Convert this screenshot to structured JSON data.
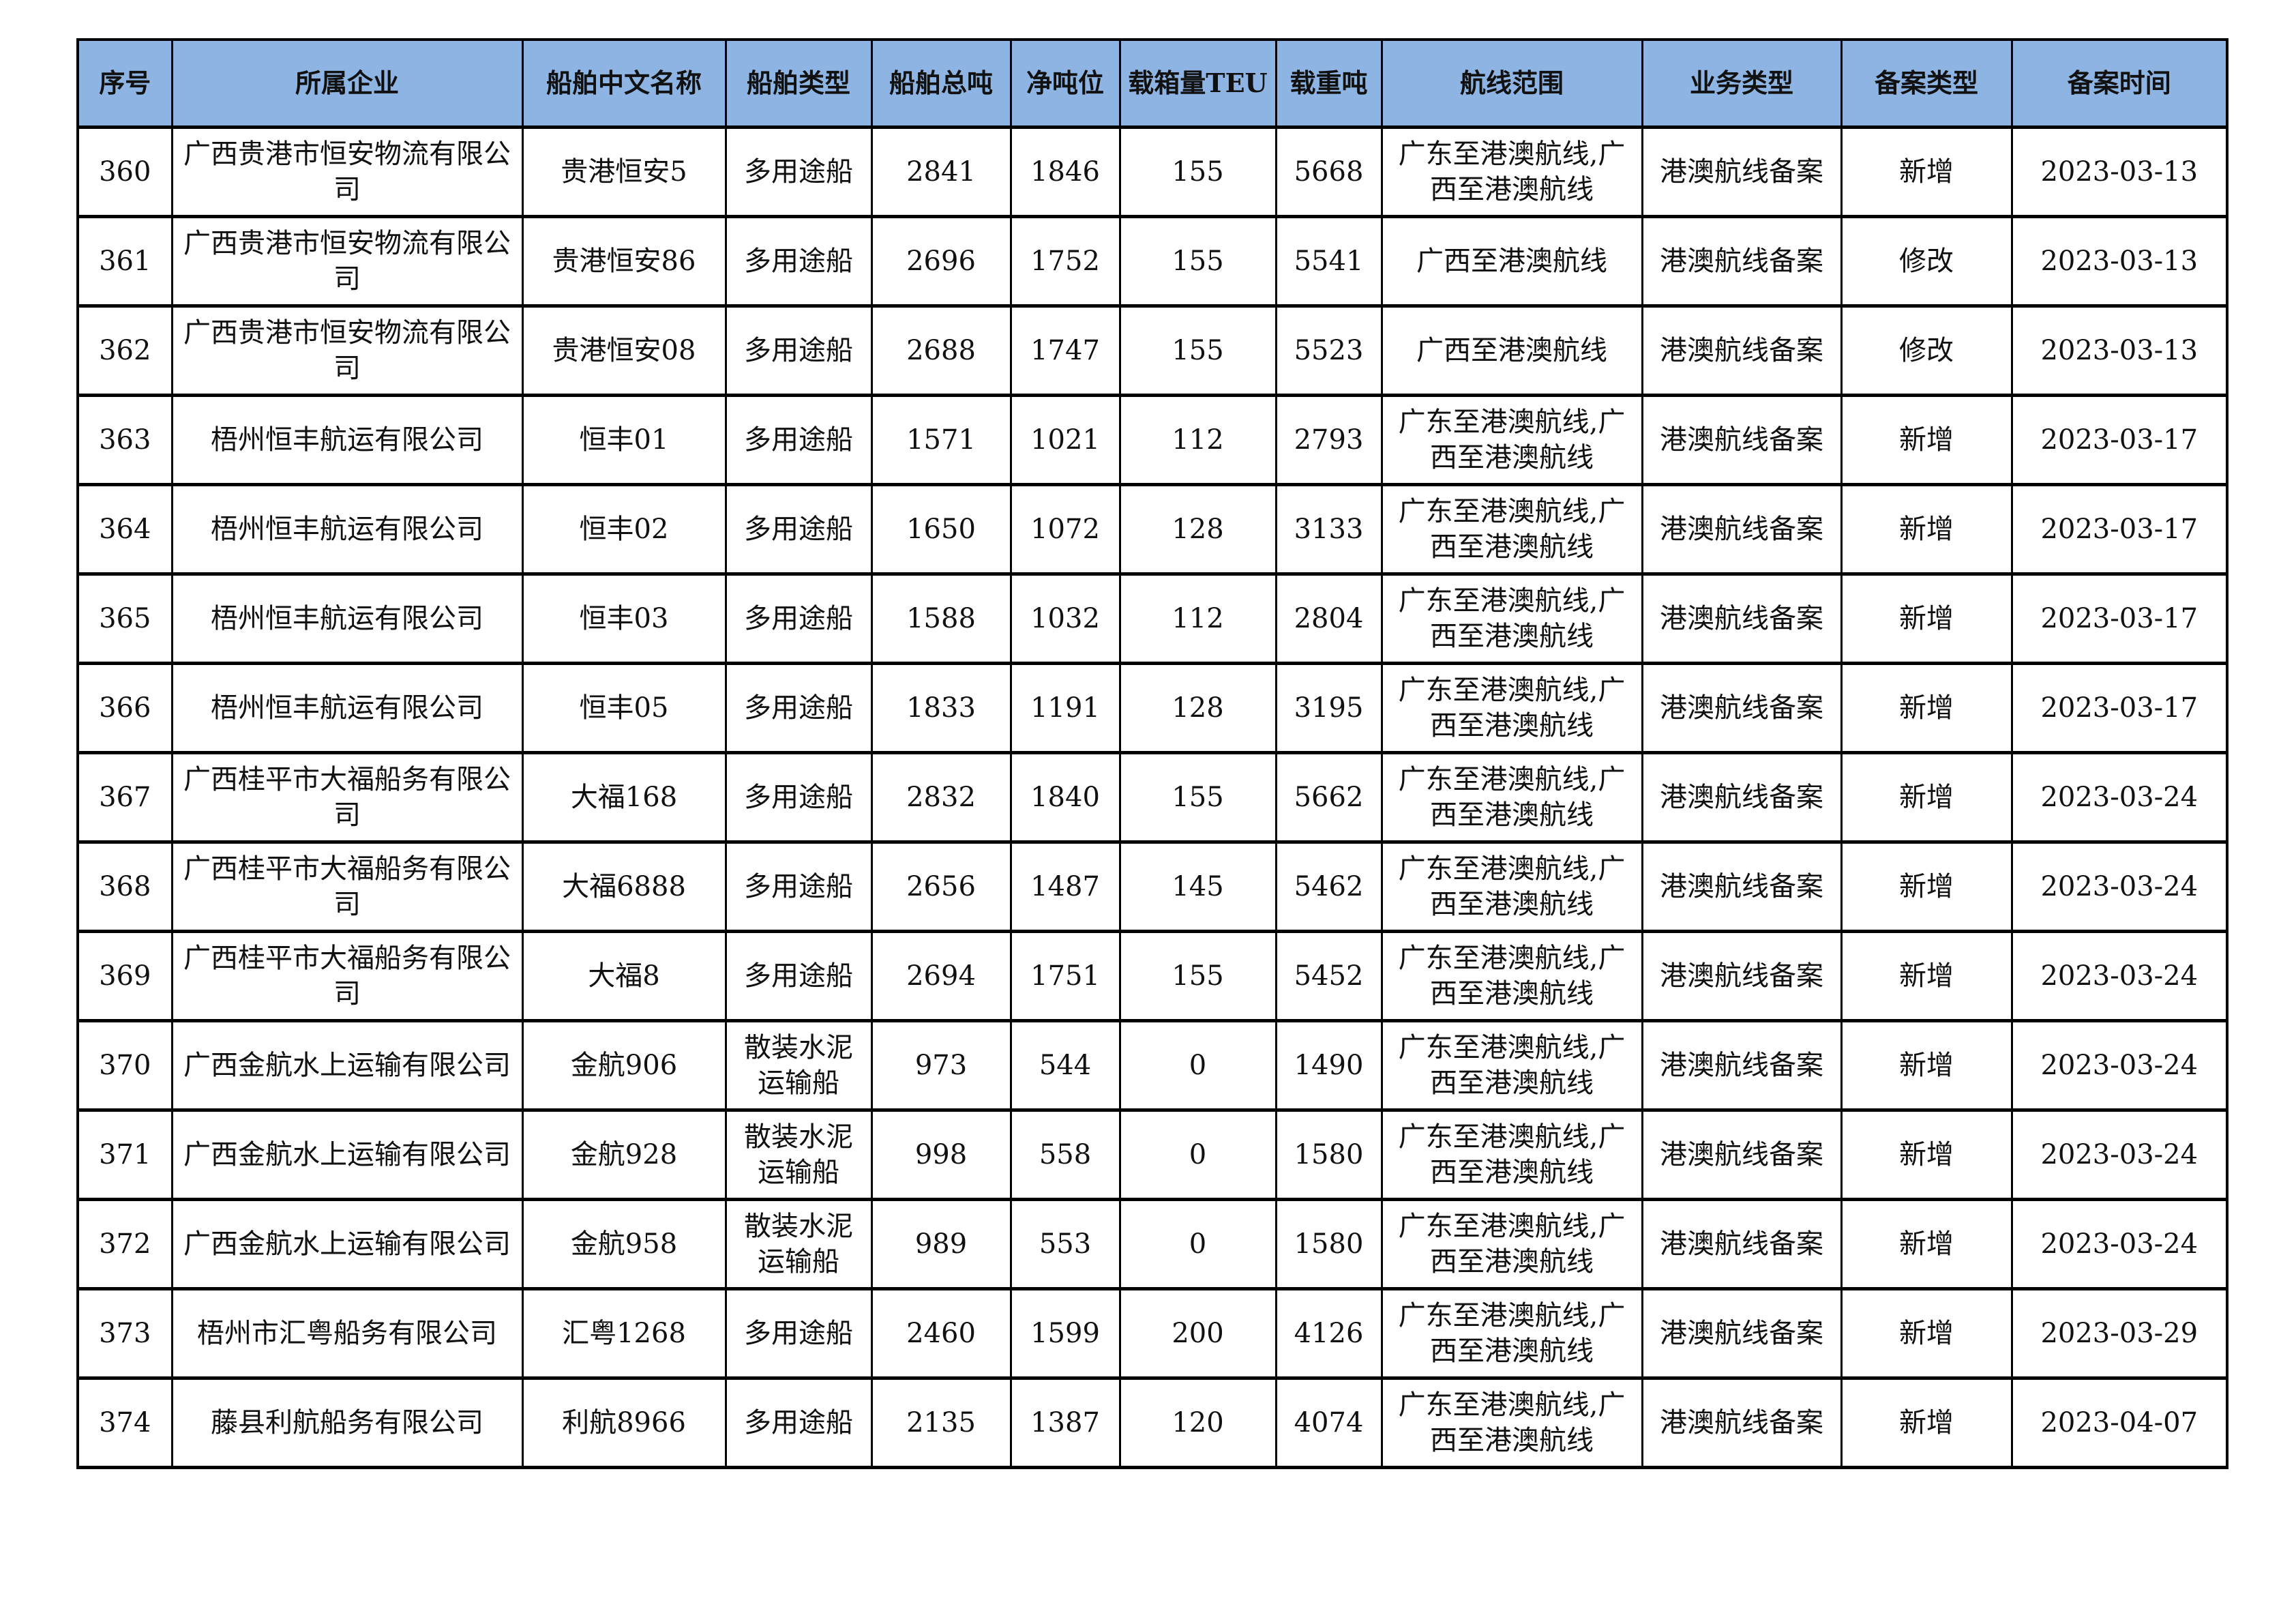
{
  "table": {
    "headers": [
      "序号",
      "所属企业",
      "船舶中文名称",
      "船舶类型",
      "船舶总吨",
      "净吨位",
      "载箱量TEU",
      "载重吨",
      "航线范围",
      "业务类型",
      "备案类型",
      "备案时间"
    ],
    "rows": [
      [
        "360",
        "广西贵港市恒安物流有限公司",
        "贵港恒安5",
        "多用途船",
        "2841",
        "1846",
        "155",
        "5668",
        "广东至港澳航线,广西至港澳航线",
        "港澳航线备案",
        "新增",
        "2023-03-13"
      ],
      [
        "361",
        "广西贵港市恒安物流有限公司",
        "贵港恒安86",
        "多用途船",
        "2696",
        "1752",
        "155",
        "5541",
        "广西至港澳航线",
        "港澳航线备案",
        "修改",
        "2023-03-13"
      ],
      [
        "362",
        "广西贵港市恒安物流有限公司",
        "贵港恒安08",
        "多用途船",
        "2688",
        "1747",
        "155",
        "5523",
        "广西至港澳航线",
        "港澳航线备案",
        "修改",
        "2023-03-13"
      ],
      [
        "363",
        "梧州恒丰航运有限公司",
        "恒丰01",
        "多用途船",
        "1571",
        "1021",
        "112",
        "2793",
        "广东至港澳航线,广西至港澳航线",
        "港澳航线备案",
        "新增",
        "2023-03-17"
      ],
      [
        "364",
        "梧州恒丰航运有限公司",
        "恒丰02",
        "多用途船",
        "1650",
        "1072",
        "128",
        "3133",
        "广东至港澳航线,广西至港澳航线",
        "港澳航线备案",
        "新增",
        "2023-03-17"
      ],
      [
        "365",
        "梧州恒丰航运有限公司",
        "恒丰03",
        "多用途船",
        "1588",
        "1032",
        "112",
        "2804",
        "广东至港澳航线,广西至港澳航线",
        "港澳航线备案",
        "新增",
        "2023-03-17"
      ],
      [
        "366",
        "梧州恒丰航运有限公司",
        "恒丰05",
        "多用途船",
        "1833",
        "1191",
        "128",
        "3195",
        "广东至港澳航线,广西至港澳航线",
        "港澳航线备案",
        "新增",
        "2023-03-17"
      ],
      [
        "367",
        "广西桂平市大福船务有限公司",
        "大福168",
        "多用途船",
        "2832",
        "1840",
        "155",
        "5662",
        "广东至港澳航线,广西至港澳航线",
        "港澳航线备案",
        "新增",
        "2023-03-24"
      ],
      [
        "368",
        "广西桂平市大福船务有限公司",
        "大福6888",
        "多用途船",
        "2656",
        "1487",
        "145",
        "5462",
        "广东至港澳航线,广西至港澳航线",
        "港澳航线备案",
        "新增",
        "2023-03-24"
      ],
      [
        "369",
        "广西桂平市大福船务有限公司",
        "大福8",
        "多用途船",
        "2694",
        "1751",
        "155",
        "5452",
        "广东至港澳航线,广西至港澳航线",
        "港澳航线备案",
        "新增",
        "2023-03-24"
      ],
      [
        "370",
        "广西金航水上运输有限公司",
        "金航906",
        "散装水泥运输船",
        "973",
        "544",
        "0",
        "1490",
        "广东至港澳航线,广西至港澳航线",
        "港澳航线备案",
        "新增",
        "2023-03-24"
      ],
      [
        "371",
        "广西金航水上运输有限公司",
        "金航928",
        "散装水泥运输船",
        "998",
        "558",
        "0",
        "1580",
        "广东至港澳航线,广西至港澳航线",
        "港澳航线备案",
        "新增",
        "2023-03-24"
      ],
      [
        "372",
        "广西金航水上运输有限公司",
        "金航958",
        "散装水泥运输船",
        "989",
        "553",
        "0",
        "1580",
        "广东至港澳航线,广西至港澳航线",
        "港澳航线备案",
        "新增",
        "2023-03-24"
      ],
      [
        "373",
        "梧州市汇粤船务有限公司",
        "汇粤1268",
        "多用途船",
        "2460",
        "1599",
        "200",
        "4126",
        "广东至港澳航线,广西至港澳航线",
        "港澳航线备案",
        "新增",
        "2023-03-29"
      ],
      [
        "374",
        "藤县利航船务有限公司",
        "利航8966",
        "多用途船",
        "2135",
        "1387",
        "120",
        "4074",
        "广东至港澳航线,广西至港澳航线",
        "港澳航线备案",
        "新增",
        "2023-04-07"
      ]
    ]
  },
  "colors": {
    "header_bg": "#8db4e2"
  }
}
